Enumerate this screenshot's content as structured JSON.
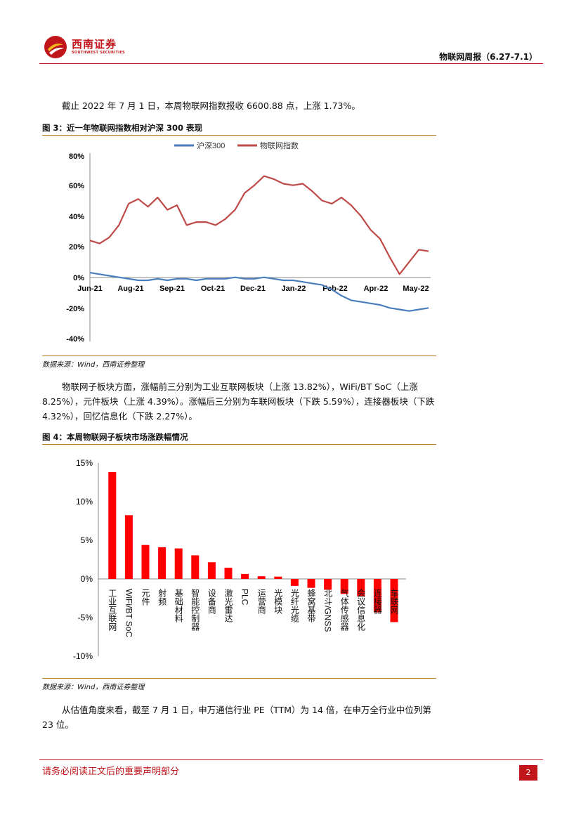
{
  "header": {
    "logo_cn": "西南证券",
    "logo_en": "SOUTHWEST SECURITIES",
    "report_title": "物联网周报（6.27-7.1）"
  },
  "para1": "截止 2022 年 7 月 1 日，本周物联网指数报收 6600.88 点，上涨 1.73%。",
  "figure3": {
    "title": "图 3：近一年物联网指数相对沪深 300 表现",
    "source": "数据来源：Wind，西南证券整理"
  },
  "para2": "物联网子板块方面，涨幅前三分别为工业互联网板块（上涨 13.82%），WiFi/BT SoC（上涨 8.25%），元件板块（上涨 4.39%）。涨幅后三分别为车联网板块（下跌 5.59%），连接器板块（下跌 4.32%），回忆信息化（下跌 2.27%）。",
  "figure4": {
    "title": "图 4：本周物联网子板块市场涨跌幅情况",
    "source": "数据来源：Wind，西南证券整理"
  },
  "para3": "从估值角度来看，截至 7 月 1 日，申万通信行业 PE（TTM）为 14 倍，在申万全行业中位列第 23 位。",
  "footer": {
    "note": "请务必阅读正文后的重要声明部分",
    "page": "2"
  },
  "colors": {
    "brand_red": "#c0161b",
    "line_blue": "#4a7ebb",
    "line_red": "#be4b48",
    "bar_red": "#ff0000",
    "rule_gold": "#b7791f"
  },
  "chart_data": [
    {
      "type": "line",
      "legend": [
        "沪深300",
        "物联网指数"
      ],
      "legend_position": "top-center",
      "x_tick_labels": [
        "Jun-21",
        "Aug-21",
        "Sep-21",
        "Oct-21",
        "Dec-21",
        "Jan-22",
        "Feb-22",
        "Apr-22",
        "May-22"
      ],
      "y_tick_labels": [
        "80%",
        "60%",
        "40%",
        "20%",
        "0%",
        "-20%",
        "-40%"
      ],
      "ylim": [
        -40,
        80
      ],
      "series": [
        {
          "name": "沪深300",
          "values": [
            3,
            2,
            1,
            0,
            -1,
            -2,
            -2,
            -1,
            -2,
            -1,
            -1,
            -2,
            -1,
            -1,
            -1,
            0,
            -1,
            -1,
            0,
            -1,
            -2,
            -2,
            -3,
            -4,
            -5,
            -8,
            -12,
            -15,
            -16,
            -17,
            -18,
            -20,
            -21,
            -22,
            -21,
            -20
          ]
        },
        {
          "name": "物联网指数",
          "values": [
            24,
            22,
            26,
            34,
            48,
            51,
            46,
            52,
            44,
            47,
            34,
            36,
            36,
            34,
            38,
            44,
            55,
            60,
            66,
            64,
            61,
            60,
            61,
            56,
            50,
            48,
            52,
            47,
            40,
            31,
            25,
            13,
            2,
            10,
            18,
            17
          ]
        }
      ]
    },
    {
      "type": "bar",
      "categories": [
        "工业互联网",
        "WiFi/BT SoC",
        "元件",
        "射频",
        "基础材料",
        "智能控制器",
        "设备商",
        "激光雷达",
        "PLC",
        "运营商",
        "光模块",
        "光纤光缆",
        "蜂窝基带",
        "北斗/GNSS",
        "气体传感器",
        "会议信息化",
        "连接器",
        "车联网"
      ],
      "values": [
        13.82,
        8.25,
        4.39,
        4.1,
        3.95,
        3.05,
        2.15,
        1.45,
        0.65,
        0.35,
        0.3,
        -0.9,
        -1.15,
        -1.4,
        -1.95,
        -2.27,
        -4.32,
        -5.59
      ],
      "y_tick_labels": [
        "15%",
        "10%",
        "5%",
        "0%",
        "-5%",
        "-10%"
      ],
      "ylim": [
        -10,
        15
      ]
    }
  ]
}
